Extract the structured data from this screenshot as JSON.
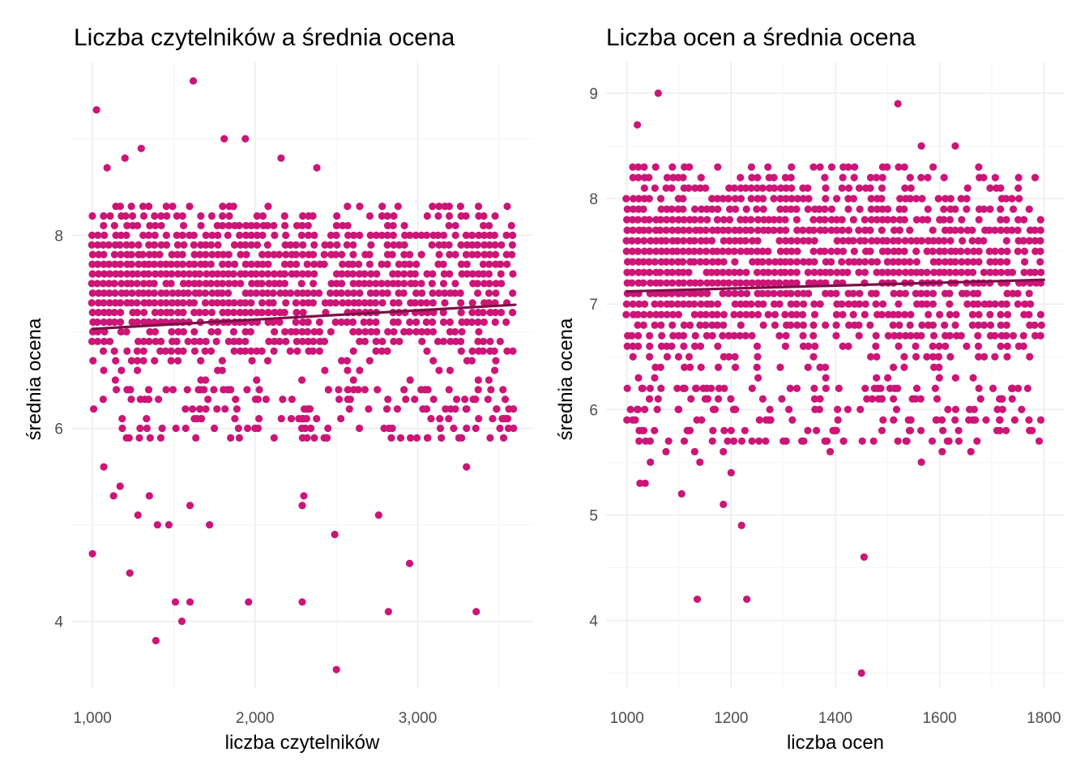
{
  "chart_data": [
    {
      "type": "scatter",
      "title": "Liczba czytelników a średnia ocena",
      "xlabel": "liczba czytelników",
      "ylabel": "średnia ocena",
      "xlim": [
        870,
        3710
      ],
      "ylim": [
        3.3,
        9.8
      ],
      "x_ticks": [
        1000,
        2000,
        3000
      ],
      "x_tick_labels": [
        "1,000",
        "2,000",
        "3,000"
      ],
      "y_ticks": [
        4,
        6,
        8
      ],
      "y_tick_labels": [
        "4",
        "6",
        "8"
      ],
      "x_range_observed": [
        1000,
        3600
      ],
      "y_dense_band": [
        6.4,
        8.3
      ],
      "y_step": 0.1,
      "grid": true,
      "legend": "none",
      "point_color": "#cc1577",
      "trend": {
        "x": [
          1000,
          3600
        ],
        "y": [
          7.03,
          7.28
        ],
        "color": "#7b1046"
      },
      "outliers": [
        {
          "x": 1000,
          "y": 4.7
        },
        {
          "x": 1025,
          "y": 9.3
        },
        {
          "x": 1230,
          "y": 4.5
        },
        {
          "x": 1390,
          "y": 3.8
        },
        {
          "x": 1510,
          "y": 4.2
        },
        {
          "x": 1550,
          "y": 4.0
        },
        {
          "x": 1600,
          "y": 4.2
        },
        {
          "x": 1620,
          "y": 9.6
        },
        {
          "x": 1960,
          "y": 4.2
        },
        {
          "x": 2290,
          "y": 4.2
        },
        {
          "x": 2490,
          "y": 4.9
        },
        {
          "x": 2500,
          "y": 3.5
        },
        {
          "x": 2760,
          "y": 5.1
        },
        {
          "x": 2820,
          "y": 4.1
        },
        {
          "x": 2950,
          "y": 4.6
        },
        {
          "x": 3360,
          "y": 4.1
        },
        {
          "x": 1810,
          "y": 9.0
        },
        {
          "x": 1940,
          "y": 9.0
        },
        {
          "x": 1300,
          "y": 8.9
        },
        {
          "x": 2160,
          "y": 8.8
        },
        {
          "x": 2380,
          "y": 8.7
        },
        {
          "x": 1200,
          "y": 8.8
        },
        {
          "x": 1090,
          "y": 8.7
        },
        {
          "x": 1400,
          "y": 5.0
        },
        {
          "x": 1470,
          "y": 5.0
        },
        {
          "x": 1720,
          "y": 5.0
        },
        {
          "x": 1170,
          "y": 5.4
        },
        {
          "x": 1280,
          "y": 5.1
        },
        {
          "x": 1600,
          "y": 5.2
        },
        {
          "x": 2290,
          "y": 5.2
        },
        {
          "x": 2300,
          "y": 5.3
        },
        {
          "x": 3300,
          "y": 5.6
        },
        {
          "x": 1070,
          "y": 5.6
        },
        {
          "x": 1130,
          "y": 5.3
        },
        {
          "x": 1350,
          "y": 5.3
        }
      ]
    },
    {
      "type": "scatter",
      "title": "Liczba ocen a średnia ocena",
      "xlabel": "liczba ocen",
      "ylabel": "średnia ocena",
      "xlim": [
        960,
        1840
      ],
      "ylim": [
        3.35,
        9.3
      ],
      "x_ticks": [
        1000,
        1200,
        1400,
        1600,
        1800
      ],
      "x_tick_labels": [
        "1000",
        "1200",
        "1400",
        "1600",
        "1800"
      ],
      "y_ticks": [
        4,
        5,
        6,
        7,
        8,
        9
      ],
      "y_tick_labels": [
        "4",
        "5",
        "6",
        "7",
        "8",
        "9"
      ],
      "x_range_observed": [
        1000,
        1800
      ],
      "y_dense_band": [
        6.2,
        8.3
      ],
      "y_step": 0.1,
      "grid": true,
      "legend": "none",
      "point_color": "#cc1577",
      "trend": {
        "x": [
          1000,
          1800
        ],
        "y": [
          7.12,
          7.23
        ],
        "color": "#7b1046"
      },
      "outliers": [
        {
          "x": 1060,
          "y": 9.0
        },
        {
          "x": 1020,
          "y": 8.7
        },
        {
          "x": 1520,
          "y": 8.9
        },
        {
          "x": 1450,
          "y": 3.5
        },
        {
          "x": 1455,
          "y": 4.6
        },
        {
          "x": 1135,
          "y": 4.2
        },
        {
          "x": 1230,
          "y": 4.2
        },
        {
          "x": 1220,
          "y": 4.9
        },
        {
          "x": 1185,
          "y": 5.1
        },
        {
          "x": 1105,
          "y": 5.2
        },
        {
          "x": 1025,
          "y": 5.3
        },
        {
          "x": 1035,
          "y": 5.3
        },
        {
          "x": 1200,
          "y": 5.4
        },
        {
          "x": 1045,
          "y": 5.5
        },
        {
          "x": 1140,
          "y": 5.5
        },
        {
          "x": 1565,
          "y": 5.5
        },
        {
          "x": 1075,
          "y": 5.6
        },
        {
          "x": 1130,
          "y": 5.6
        },
        {
          "x": 1185,
          "y": 5.6
        },
        {
          "x": 1390,
          "y": 5.6
        },
        {
          "x": 1605,
          "y": 5.6
        },
        {
          "x": 1660,
          "y": 5.6
        },
        {
          "x": 1110,
          "y": 5.7
        },
        {
          "x": 1240,
          "y": 5.7
        },
        {
          "x": 1300,
          "y": 5.7
        },
        {
          "x": 1380,
          "y": 5.7
        },
        {
          "x": 1520,
          "y": 5.7
        },
        {
          "x": 1615,
          "y": 5.7
        },
        {
          "x": 1165,
          "y": 5.8
        },
        {
          "x": 1200,
          "y": 5.8
        },
        {
          "x": 1400,
          "y": 5.8
        },
        {
          "x": 1710,
          "y": 5.8
        },
        {
          "x": 1565,
          "y": 8.5
        },
        {
          "x": 1630,
          "y": 8.5
        },
        {
          "x": 1000,
          "y": 5.9
        },
        {
          "x": 1715,
          "y": 5.9
        }
      ]
    }
  ]
}
